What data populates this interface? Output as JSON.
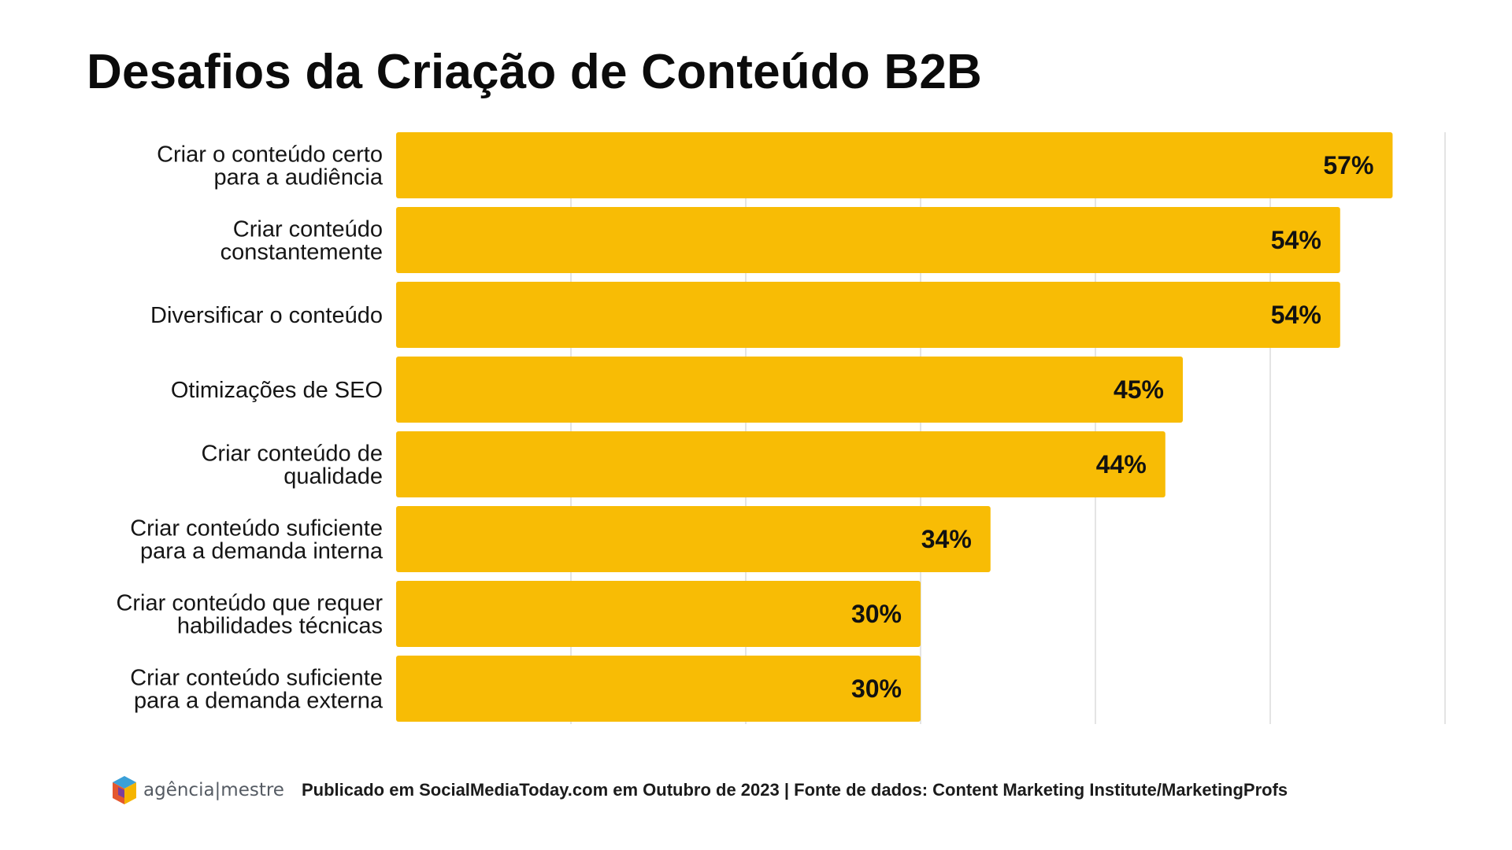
{
  "title": "Desafios da Criação de Conteúdo B2B",
  "chart_data": {
    "type": "bar",
    "orientation": "horizontal",
    "categories": [
      [
        "Criar o conteúdo certo",
        "para a audiência"
      ],
      [
        "Criar conteúdo",
        "constantemente"
      ],
      [
        "Diversificar o conteúdo"
      ],
      [
        "Otimizações de SEO"
      ],
      [
        "Criar conteúdo de",
        "qualidade"
      ],
      [
        "Criar conteúdo suficiente",
        "para a demanda interna"
      ],
      [
        "Criar conteúdo que requer",
        "habilidades técnicas"
      ],
      [
        "Criar conteúdo suficiente",
        "para a demanda externa"
      ]
    ],
    "values": [
      57,
      54,
      54,
      45,
      44,
      34,
      30,
      30
    ],
    "value_labels": [
      "57%",
      "54%",
      "54%",
      "45%",
      "44%",
      "34%",
      "30%",
      "30%"
    ],
    "xlim": [
      0,
      60
    ],
    "grid": true,
    "bar_color": "#F8BC05",
    "grid_color": "#DCDCDC"
  },
  "footer": {
    "logo_text": "agência|mestre",
    "source": "Publicado em SocialMediaToday.com em Outubro de 2023 | Fonte de dados: Content Marketing Institute/MarketingProfs"
  }
}
